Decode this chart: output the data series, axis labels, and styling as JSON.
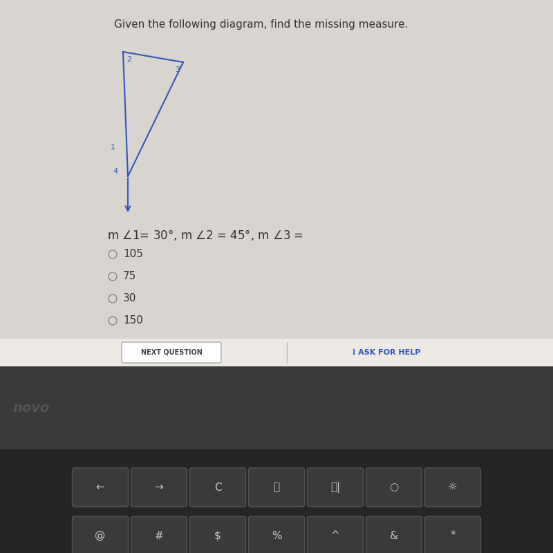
{
  "title": "Given the following diagram, find the missing measure.",
  "title_fontsize": 11,
  "title_color": "#333333",
  "screen_bg": "#d4d0cc",
  "screen_content_bg": "#e8e5e0",
  "triangle_color": "#3355bb",
  "triangle_linewidth": 1.5,
  "label_2": "2",
  "label_3": "3",
  "label_1": "1",
  "label_4": "4",
  "choices": [
    "105",
    "75",
    "30",
    "150"
  ],
  "choice_fontsize": 11,
  "button_next": "NEXT QUESTION",
  "button_ask": "ASK FOR HELP",
  "bottom_bar_color": "#f0eeeb",
  "button_color": "#e8e5e0",
  "button_border": "#aaaaaa",
  "keyboard_bg": "#2a2a2a",
  "laptop_bezel": "#1a1a1a",
  "dark_area_color": "#404040",
  "novo_color": "#3a3a3a",
  "key_color": "#333333",
  "key_text_color": "#cccccc"
}
